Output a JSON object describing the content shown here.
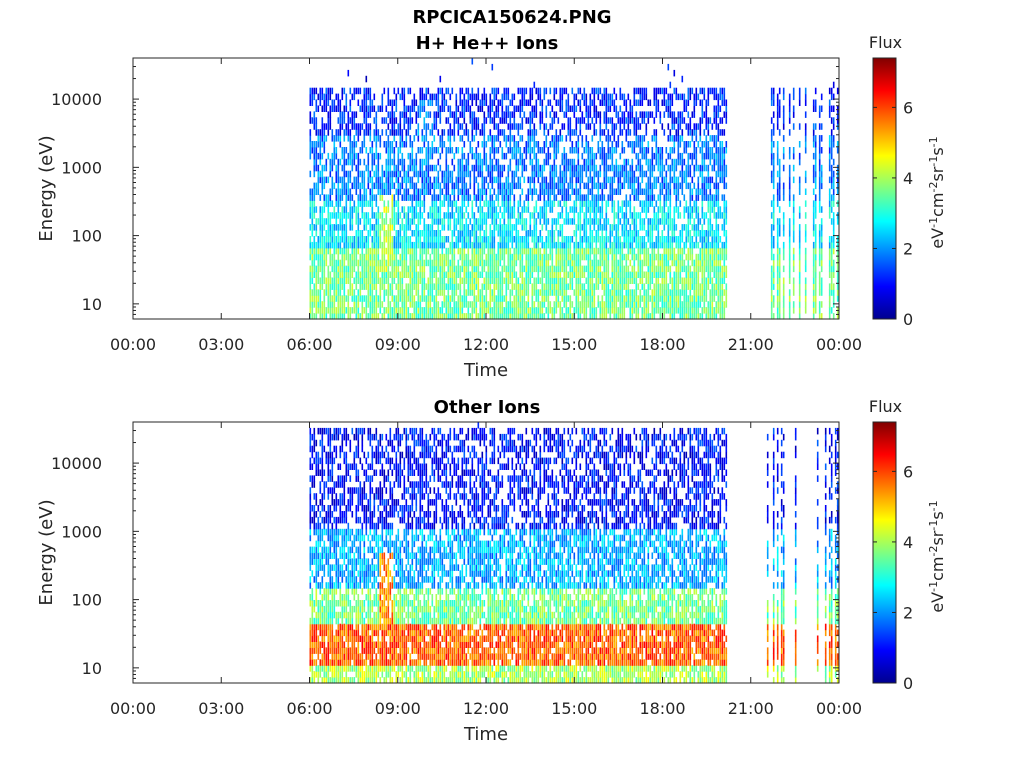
{
  "figure_title": "RPCICA150624.PNG",
  "colorbar_common": {
    "label": "Flux",
    "unit_label": "eV-1cm-2sr-1s-1",
    "ticks": [
      0,
      2,
      4,
      6
    ],
    "range": [
      0,
      7.4
    ],
    "colormap": "jet",
    "colormap_stops": [
      "#00008f",
      "#0000ff",
      "#0080ff",
      "#00ffff",
      "#80ff80",
      "#ffff00",
      "#ff8000",
      "#ff0000",
      "#800000"
    ]
  },
  "chart_data": [
    {
      "type": "heatmap",
      "title": "H+ He++ Ions",
      "xlabel": "Time",
      "ylabel": "Energy (eV)",
      "x_ticks": [
        "00:00",
        "03:00",
        "06:00",
        "09:00",
        "12:00",
        "15:00",
        "18:00",
        "21:00",
        "00:00"
      ],
      "xlim_hours": [
        0,
        24
      ],
      "y_scale": "log",
      "y_ticks": [
        10,
        100,
        1000,
        10000
      ],
      "ylim": [
        6,
        40000
      ],
      "colorbar": {
        "label": "Flux",
        "ticks": [
          0,
          2,
          4,
          6
        ],
        "range": [
          0,
          7.4
        ]
      },
      "data_coverage_hours": [
        [
          6.0,
          20.15
        ],
        [
          21.55,
          23.95
        ]
      ],
      "gap_hours": [
        20.15,
        21.55
      ],
      "flux_profile": [
        {
          "energy_range_eV": [
            6,
            60
          ],
          "typical_flux": 3.6
        },
        {
          "energy_range_eV": [
            60,
            300
          ],
          "typical_flux": 2.6
        },
        {
          "energy_range_eV": [
            300,
            3000
          ],
          "typical_flux": 1.8
        },
        {
          "energy_range_eV": [
            3000,
            15000
          ],
          "typical_flux": 1.2
        }
      ],
      "notable_features": [
        {
          "time_hours": 8.6,
          "energy_range_eV": [
            30,
            400
          ],
          "flux": 4.0
        },
        {
          "time_hours": 9.9,
          "energy_range_eV": [
            20,
            9000
          ],
          "flux": 1.8
        }
      ]
    },
    {
      "type": "heatmap",
      "title": "Other Ions",
      "xlabel": "Time",
      "ylabel": "Energy (eV)",
      "x_ticks": [
        "00:00",
        "03:00",
        "06:00",
        "09:00",
        "12:00",
        "15:00",
        "18:00",
        "21:00",
        "00:00"
      ],
      "xlim_hours": [
        0,
        24
      ],
      "y_scale": "log",
      "y_ticks": [
        10,
        100,
        1000,
        10000
      ],
      "ylim": [
        6,
        40000
      ],
      "colorbar": {
        "label": "Flux",
        "ticks": [
          0,
          2,
          4,
          6
        ],
        "range": [
          0,
          7.4
        ]
      },
      "data_coverage_hours": [
        [
          6.0,
          20.15
        ],
        [
          21.55,
          23.95
        ]
      ],
      "gap_hours": [
        20.15,
        21.55
      ],
      "flux_profile": [
        {
          "energy_range_eV": [
            6,
            10
          ],
          "typical_flux": 4.0
        },
        {
          "energy_range_eV": [
            10,
            45
          ],
          "typical_flux": 5.8
        },
        {
          "energy_range_eV": [
            45,
            150
          ],
          "typical_flux": 3.6
        },
        {
          "energy_range_eV": [
            150,
            1000
          ],
          "typical_flux": 2.2
        },
        {
          "energy_range_eV": [
            1000,
            30000
          ],
          "typical_flux": 1.0
        }
      ],
      "notable_features": [
        {
          "time_hours": 8.6,
          "energy_range_eV": [
            40,
            500
          ],
          "flux": 5.5
        }
      ]
    }
  ]
}
